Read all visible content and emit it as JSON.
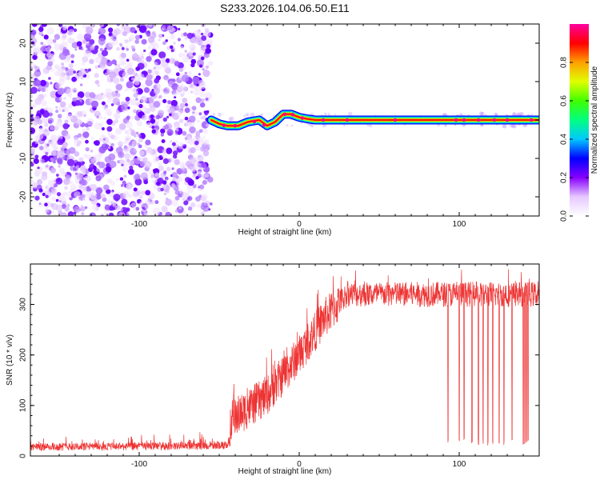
{
  "title": "S233.2026.104.06.50.E11",
  "chart_data": [
    {
      "type": "heatmap",
      "xlabel": "Height of straight line (km)",
      "ylabel": "Frequency (Hz)",
      "xlim": [
        -168,
        150
      ],
      "ylim": [
        -25,
        25
      ],
      "xticks": [
        -100,
        0,
        100
      ],
      "yticks": [
        -20,
        -10,
        0,
        10,
        20
      ],
      "noise_region_x": [
        -168,
        -55
      ],
      "ridge": [
        {
          "x": -55,
          "y": 0
        },
        {
          "x": -50,
          "y": -1
        },
        {
          "x": -45,
          "y": -1.5
        },
        {
          "x": -38,
          "y": -1.5
        },
        {
          "x": -32,
          "y": -0.5
        },
        {
          "x": -25,
          "y": 0
        },
        {
          "x": -20,
          "y": -1.5
        },
        {
          "x": -15,
          "y": -0.5
        },
        {
          "x": -10,
          "y": 1.5
        },
        {
          "x": -5,
          "y": 1.5
        },
        {
          "x": 0,
          "y": 0.7
        },
        {
          "x": 5,
          "y": 0.3
        },
        {
          "x": 10,
          "y": 0
        },
        {
          "x": 150,
          "y": 0
        }
      ],
      "colorbar": {
        "label": "Normalized spectral amplitude",
        "ticks": [
          0.0,
          0.2,
          0.4,
          0.6,
          0.8
        ],
        "range": [
          0,
          1
        ],
        "colors": [
          "#ffffff",
          "#e6c8ff",
          "#8800ff",
          "#0000ff",
          "#00c8ff",
          "#00ff80",
          "#40ff00",
          "#e0ff00",
          "#ffa000",
          "#ff0000",
          "#ff00a0"
        ]
      }
    },
    {
      "type": "line",
      "xlabel": "Height of straight line (km)",
      "ylabel": "SNR (10 * v/v)",
      "xlim": [
        -168,
        150
      ],
      "ylim": [
        0,
        380
      ],
      "xticks": [
        -100,
        0,
        100
      ],
      "yticks": [
        0,
        100,
        200,
        300
      ],
      "color": "#ee3333",
      "trend": [
        {
          "x": -168,
          "y": 18
        },
        {
          "x": -60,
          "y": 20
        },
        {
          "x": -43,
          "y": 22
        },
        {
          "x": -43,
          "y": 70
        },
        {
          "x": -20,
          "y": 120
        },
        {
          "x": 0,
          "y": 200
        },
        {
          "x": 15,
          "y": 270
        },
        {
          "x": 30,
          "y": 320
        },
        {
          "x": 150,
          "y": 320
        }
      ],
      "dropouts_x": [
        93,
        100,
        103,
        108,
        112,
        115,
        118,
        121,
        125,
        128,
        133,
        140,
        141,
        142,
        143
      ]
    }
  ]
}
